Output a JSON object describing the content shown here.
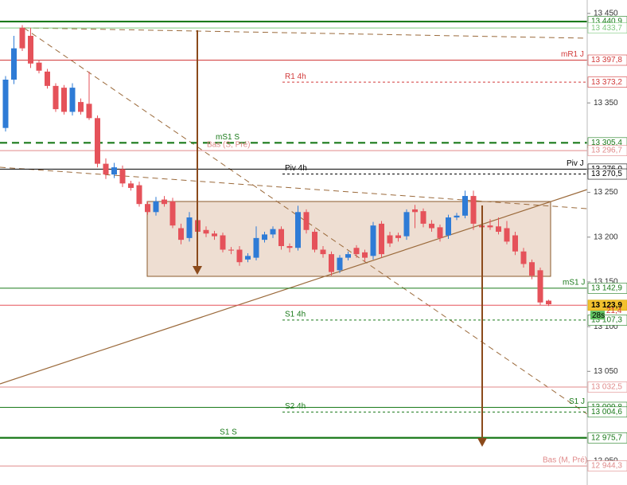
{
  "chart_data": {
    "type": "candlestick",
    "ylim": [
      12923,
      13465
    ],
    "yticks": [
      {
        "value": 13450,
        "label": "13 450"
      },
      {
        "value": 13350,
        "label": "13 350"
      },
      {
        "value": 13250,
        "label": "13 250"
      },
      {
        "value": 13200,
        "label": "13 200"
      },
      {
        "value": 13150,
        "label": "13 150"
      },
      {
        "value": 13100,
        "label": "13 100"
      },
      {
        "value": 13050,
        "label": "13 050"
      },
      {
        "value": 12950,
        "label": "12 950"
      }
    ],
    "up_color": "#2e7bd6",
    "down_color": "#e5525a",
    "open": [
      13322,
      13376,
      13434,
      13425,
      13395,
      13385,
      13369,
      13367,
      13340,
      13351,
      13349,
      13333,
      13282,
      13270,
      13276,
      13260,
      13258,
      13237,
      13228,
      13242,
      13240,
      13210,
      13199,
      13219,
      13208,
      13204,
      13202,
      13186,
      13186,
      13175,
      13177,
      13197,
      13203,
      13209,
      13190,
      13188,
      13228,
      13206,
      13186,
      13181,
      13163,
      13177,
      13188,
      13183,
      13179,
      13215,
      13202,
      13202,
      13201,
      13231,
      13229,
      13215,
      13211,
      13202,
      13222,
      13224,
      13246,
      13213,
      13213,
      13212,
      13210,
      13202,
      13184,
      13172,
      13163,
      13129
    ],
    "high": [
      13380,
      13425,
      13437,
      13434,
      13398,
      13388,
      13372,
      13370,
      13372,
      13355,
      13385,
      13336,
      13288,
      13283,
      13280,
      13263,
      13262,
      13240,
      13245,
      13246,
      13244,
      13215,
      13228,
      13230,
      13212,
      13207,
      13205,
      13189,
      13190,
      13182,
      13212,
      13206,
      13212,
      13212,
      13193,
      13235,
      13231,
      13209,
      13190,
      13184,
      13180,
      13184,
      13191,
      13186,
      13217,
      13218,
      13206,
      13205,
      13231,
      13236,
      13232,
      13219,
      13214,
      13225,
      13227,
      13252,
      13252,
      13216,
      13220,
      13222,
      13218,
      13206,
      13188,
      13175,
      13166,
      13130
    ],
    "low": [
      13318,
      13371,
      13408,
      13389,
      13383,
      13366,
      13340,
      13337,
      13336,
      13337,
      13331,
      13278,
      13265,
      13266,
      13256,
      13252,
      13234,
      13225,
      13224,
      13234,
      13210,
      13192,
      13195,
      13202,
      13200,
      13197,
      13183,
      13181,
      13168,
      13172,
      13174,
      13194,
      13199,
      13186,
      13183,
      13185,
      13204,
      13183,
      13177,
      13157,
      13160,
      13174,
      13177,
      13173,
      13175,
      13177,
      13189,
      13195,
      13197,
      13210,
      13211,
      13206,
      13195,
      13198,
      13219,
      13221,
      13208,
      13208,
      13208,
      13203,
      13192,
      13180,
      13166,
      13153,
      13124,
      13123
    ],
    "close": [
      13376,
      13411,
      13411,
      13394,
      13386,
      13369,
      13343,
      13340,
      13367,
      13340,
      13333,
      13282,
      13270,
      13278,
      13260,
      13255,
      13237,
      13228,
      13240,
      13237,
      13213,
      13197,
      13222,
      13206,
      13204,
      13201,
      13186,
      13185,
      13172,
      13179,
      13199,
      13203,
      13209,
      13190,
      13188,
      13228,
      13208,
      13186,
      13181,
      13161,
      13177,
      13181,
      13181,
      13177,
      13213,
      13181,
      13193,
      13199,
      13228,
      13228,
      13215,
      13210,
      13199,
      13222,
      13224,
      13246,
      13215,
      13211,
      13211,
      13206,
      13195,
      13184,
      13170,
      13157,
      13127,
      13125
    ],
    "levels": [
      {
        "value": 13440.9,
        "label": "13 440,9",
        "color": "#1a7a1a",
        "style": "thick"
      },
      {
        "value": 13433.7,
        "label": "13 433,7",
        "color": "#7ec87e",
        "style": "solid"
      },
      {
        "value": 13397.8,
        "label": "13 397,8",
        "name": "mR1 J",
        "color": "#d23a3a",
        "style": "solid"
      },
      {
        "value": 13373.2,
        "label": "13 373,2",
        "name": "R1 4h",
        "color": "#d23a3a",
        "style": "dotted"
      },
      {
        "value": 13305.4,
        "label": "13 305,4",
        "name": "mS1 S",
        "color": "#1a7a1a",
        "style": "thick-dashed"
      },
      {
        "value": 13296.7,
        "label": "13 296,7",
        "name": "Bas (S, Pré)",
        "color": "#e08a8a",
        "style": "solid"
      },
      {
        "value": 13276.0,
        "label": "13 276,0",
        "name": "Piv J",
        "color": "#000000",
        "style": "solid"
      },
      {
        "value": 13270.5,
        "label": "13 270,5",
        "name": "Piv 4h",
        "color": "#000000",
        "style": "dotted"
      },
      {
        "value": 13142.9,
        "label": "13 142,9",
        "name": "mS1 J",
        "color": "#1a7a1a",
        "style": "solid"
      },
      {
        "value": 13123.9,
        "label": "13 123,9",
        "color": "#e5525a",
        "style": "solid",
        "highlight": true
      },
      {
        "value": 13107.3,
        "label": "13 107,3",
        "name": "S1 4h",
        "color": "#1a7a1a",
        "style": "dotted"
      },
      {
        "value": 13032.5,
        "label": "13 032,5",
        "color": "#e08a8a",
        "style": "solid"
      },
      {
        "value": 13009.8,
        "label": "13 009,8",
        "name": "S1 J",
        "color": "#1a7a1a",
        "style": "solid"
      },
      {
        "value": 13004.6,
        "label": "13 004,6",
        "name": "S2 4h",
        "color": "#1a7a1a",
        "style": "dotted"
      },
      {
        "value": 12975.7,
        "label": "12 975,7",
        "name": "S1 S",
        "color": "#1a7a1a",
        "style": "thick"
      },
      {
        "value": 12944.3,
        "label": "12 944,3",
        "name": "Bas (M, Pré)",
        "color": "#e08a8a",
        "style": "solid"
      }
    ],
    "timer": "28s",
    "bid_label": "21,4"
  }
}
